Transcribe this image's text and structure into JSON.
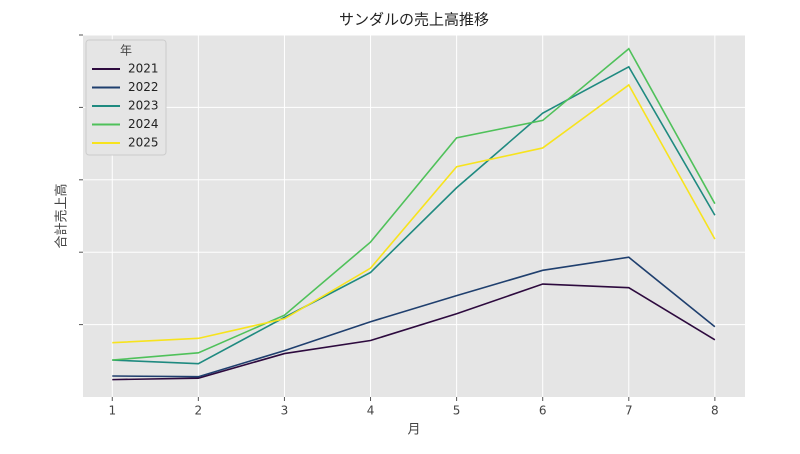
{
  "chart_data": {
    "type": "line",
    "title": "サンダルの売上高推移",
    "x_label": "月",
    "y_label": "合計売上高",
    "x": [
      1,
      2,
      3,
      4,
      5,
      6,
      7,
      8
    ],
    "xlim": [
      0.66,
      8.35
    ],
    "xticks": [
      1,
      2,
      3,
      4,
      5,
      6,
      7,
      8
    ],
    "ylim": [
      0,
      5
    ],
    "yticks": [
      1,
      2,
      3,
      4,
      5
    ],
    "grid": true,
    "legend_title": "年",
    "legend_position": "upper left",
    "series": [
      {
        "name": "2021",
        "color": "#2d0a3e",
        "values": [
          0.24,
          0.26,
          0.6,
          0.78,
          1.15,
          1.56,
          1.51,
          0.79
        ]
      },
      {
        "name": "2022",
        "color": "#1f3f6e",
        "values": [
          0.29,
          0.28,
          0.64,
          1.04,
          1.4,
          1.75,
          1.93,
          0.97
        ]
      },
      {
        "name": "2023",
        "color": "#1f8a80",
        "values": [
          0.51,
          0.46,
          1.1,
          1.72,
          2.89,
          3.92,
          4.56,
          2.51
        ]
      },
      {
        "name": "2024",
        "color": "#4fc15a",
        "values": [
          0.51,
          0.61,
          1.13,
          2.14,
          3.58,
          3.82,
          4.81,
          2.67
        ]
      },
      {
        "name": "2025",
        "color": "#f7e31d",
        "values": [
          0.75,
          0.81,
          1.08,
          1.78,
          3.18,
          3.44,
          4.31,
          2.18
        ]
      }
    ]
  }
}
